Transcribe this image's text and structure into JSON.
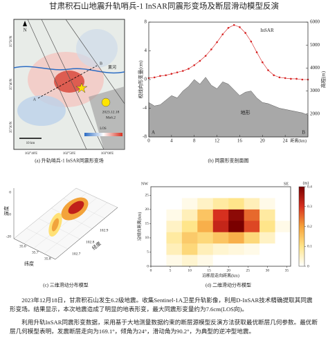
{
  "title": "甘肃积石山地震升轨哨兵-1 InSAR同震形变场及断层滑动模型反演",
  "map": {
    "caption": "(a) 升轨哨兵-1 InSAR同震形变场",
    "north": "N",
    "lat_labels": [
      "35°50'N",
      "35°40'N",
      "35°30'N"
    ],
    "lon_labels": [
      "102°40'E",
      "102°50'E",
      "103°00'E"
    ],
    "river": "黄河",
    "point_a": "A",
    "point_b": "B",
    "date": "2023.12.18",
    "magnitude": "Ms6.2",
    "scale": "10 km",
    "los": "LOS"
  },
  "model3d": {
    "caption": "(c) 三维滑动分布模型",
    "z_label": "深度",
    "lat_label": "纬度",
    "lon_label": "经度",
    "lat_ticks": [
      "35.6",
      "35.7",
      "35.8"
    ],
    "lon_ticks": [
      "102.7",
      "102.8",
      "102.9"
    ],
    "z_ticks": [
      "0",
      "-10",
      "-20"
    ]
  },
  "chart_data": [
    {
      "type": "line",
      "caption": "(b) 同震形变剖面图",
      "xlabel": "距离(km)",
      "ylabel": "视线向形变量(cm)",
      "y2label": "高程(m)",
      "start_label": "A",
      "end_label": "B",
      "x": [
        0,
        1,
        2,
        3,
        4,
        5,
        6,
        7,
        8,
        9,
        10,
        11,
        12,
        13,
        14,
        15,
        16,
        17,
        18,
        19,
        20,
        21,
        22,
        23,
        24,
        25,
        26,
        27,
        28
      ],
      "xlim": [
        0,
        28
      ],
      "xticks": [
        0,
        4,
        8,
        12,
        16,
        20,
        24
      ],
      "ylim": [
        -8,
        8
      ],
      "yticks": [
        -8,
        -4,
        0,
        4,
        8
      ],
      "y2lim": [
        1000,
        6000
      ],
      "y2ticks": [
        2000,
        3000,
        4000,
        5000,
        6000
      ],
      "series": [
        {
          "name": "InSAR",
          "color": "#d62020",
          "values": [
            0.2,
            0.3,
            0.5,
            0.6,
            0.8,
            1.0,
            1.2,
            1.5,
            2.0,
            2.6,
            3.3,
            4.2,
            5.2,
            6.3,
            7.2,
            7.6,
            7.3,
            6.5,
            5.3,
            3.8,
            2.4,
            1.3,
            0.6,
            0.3,
            0.2,
            0.1,
            0.1,
            0.0,
            0.0
          ]
        },
        {
          "name": "地形",
          "color": "#a8a8a8",
          "axis": "y2",
          "values": [
            2500,
            2350,
            2400,
            2600,
            2800,
            2700,
            3000,
            3200,
            3500,
            3300,
            3600,
            3250,
            3100,
            3400,
            3300,
            3050,
            2800,
            2950,
            3000,
            2700,
            2500,
            2450,
            2350,
            2250,
            2200,
            2150,
            2100,
            2050,
            1950
          ]
        }
      ]
    },
    {
      "type": "heatmap",
      "caption": "(d) 二维滑动分布模型",
      "xlabel": "沿断层走向距离(km)",
      "ylabel": "沿倾向距离(km)",
      "left_label": "NW",
      "right_label": "SE",
      "unit": "(m)",
      "xlim": [
        0,
        36
      ],
      "xticks": [
        0,
        5,
        10,
        15,
        20,
        25,
        30,
        35
      ],
      "ylim": [
        0,
        28
      ],
      "yticks": [
        0,
        5,
        10,
        15,
        20,
        25
      ],
      "x": [
        2,
        6,
        10,
        14,
        18,
        22,
        26,
        30,
        34
      ],
      "y": [
        26,
        22,
        18,
        14,
        10,
        6,
        2
      ],
      "zlim": [
        0,
        0.4
      ],
      "zticks": [
        0,
        0.1,
        0.2,
        0.3,
        0.4
      ],
      "colorscale": [
        "#ffffff",
        "#ffe58a",
        "#f6a23a",
        "#d7301f",
        "#7a0000"
      ],
      "values": [
        [
          0,
          0,
          0,
          0,
          0,
          0,
          0,
          0,
          0
        ],
        [
          0,
          0,
          0.02,
          0.05,
          0.08,
          0.1,
          0.06,
          0.02,
          0
        ],
        [
          0,
          0.02,
          0.06,
          0.15,
          0.3,
          0.38,
          0.25,
          0.08,
          0
        ],
        [
          0,
          0.05,
          0.1,
          0.18,
          0.32,
          0.4,
          0.28,
          0.1,
          0.02
        ],
        [
          0,
          0.08,
          0.14,
          0.12,
          0.15,
          0.18,
          0.12,
          0.05,
          0
        ],
        [
          0,
          0.06,
          0.12,
          0.06,
          0.04,
          0.03,
          0.02,
          0,
          0
        ],
        [
          0,
          0.02,
          0.04,
          0.02,
          0,
          0,
          0,
          0,
          0
        ]
      ]
    }
  ],
  "paragraphs": [
    "2023年12月18日，甘肃积石山发生6.2级地震。收集Sentinel-1A卫星升轨影像，利用D-InSAR技术精确提取其同震形变场。结果显示，本次地震造成了明显的地表形变，最大同震形变量约为7.6cm(LOS向)。",
    "利用升轨InSAR同震形变数据，采用基于大地测量数据约束的断层源模型反演方法获取最优断层几何参数。最优断层几何模型表明，发震断层走向为169.1°，倾角为24°，滑动角为90.2°，为典型的逆冲型地震。"
  ]
}
